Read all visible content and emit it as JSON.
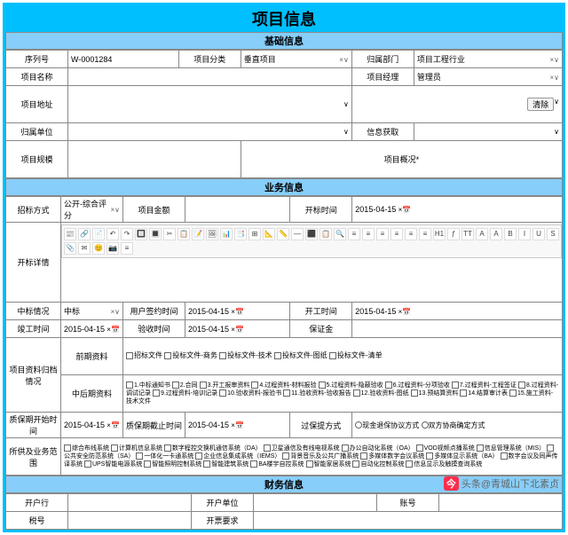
{
  "title": "项目信息",
  "sections": {
    "basic": "基础信息",
    "business": "业务信息",
    "finance": "财务信息"
  },
  "labels": {
    "serial_no": "序列号",
    "project_category": "项目分类",
    "department": "归属部门",
    "project_name": "项目名称",
    "project_manager": "项目经理",
    "project_address": "项目地址",
    "org_unit": "归属单位",
    "info_source": "信息获取",
    "project_scale": "项目规模",
    "project_overview": "项目概况*",
    "bid_method": "招标方式",
    "project_amount": "项目金额",
    "open_time": "开标时间",
    "bid_detail": "开标详情",
    "award_status": "中标情况",
    "user_sign_time": "用户签约时间",
    "start_time": "开工时间",
    "complete_time": "竣工时间",
    "accept_time": "验收时间",
    "deposit": "保证金",
    "material_storage": "项目资料归档情况",
    "early_material": "前期资料",
    "later_material": "中后期资料",
    "warranty_start": "质保期开始时间",
    "warranty_end": "质保期截止时间",
    "deposit_return": "过保提方式",
    "inv_scope": "所供及业务范围",
    "bank": "开户行",
    "account_unit": "开户单位",
    "account_no": "账号",
    "tax_no": "税号",
    "inv_require": "开票要求"
  },
  "values": {
    "serial_no": "W-0001284",
    "project_category": "垂直项目",
    "department": "项目工程行业",
    "project_manager": "管理员",
    "bid_method": "公开-综合评分",
    "open_time": "2015-04-15",
    "award_status": "中标",
    "user_sign_time": "2015-04-15",
    "start_time_val": "2015-04-15",
    "complete_time": "2015-04-15",
    "accept_time": "2015-04-15",
    "warranty_start": "2015-04-15",
    "warranty_end": "2015-04-15",
    "clear_btn": "清除"
  },
  "early_checkboxes": [
    "招标文件",
    "投标文件-商务",
    "投标文件-技术",
    "投标文件-图纸",
    "投标文件-清单"
  ],
  "later_checkboxes": "1.中标通知书  2.合同  3.开工报审资料  4.过程资料-材料报验  5.过程资料-隐蔽验收  6.过程资料-分项验收  7.过程资料-工程签证  8.过程资料-调试记录  9.过程资料-培训记录  10.验收资料-报验书  11.验收资料-验收报告  12.验收资料-图纸  13.预结算资料  14.结算审计表  15.施工资料-技术文件",
  "deposit_return_options": [
    "现金退保协议方式",
    "双方协商确定方式"
  ],
  "scope_checkboxes": "综合布线系统  计算机信息系统  数字程控交换机通信系统（DA）  卫星通信及有线电视系统  办公自动化系统（OA）  VOD视频点播系统  信息管理系统（MIS）  公共安全防范系统（SA）  一体化一卡通系统  企业信息集成系统（IEMS）  背景音乐及公共广播系统  多媒体数字会议系统  多媒体显示系统（BA）  数字会议及同声传译系统  UPS智能电源系统  智能照明控制系统  智能建筑系统  BA楼宇自控系统  智能家居系统  自动化控制系统  信息显示及触摸查询系统",
  "toolbar": {
    "row1": [
      "📰",
      "🔗",
      "📄",
      "↶",
      "↷",
      "🔲",
      "🔳",
      "✂",
      "📋",
      "📝",
      "🖼",
      "📊",
      "📑",
      "⊞",
      "📐",
      "📏",
      "—",
      "⬛",
      "📋",
      "🔍",
      "≡",
      "≡",
      "≡",
      "≡",
      "≡",
      "≡",
      "H1",
      "ƒ",
      "TT",
      "A",
      "A",
      "B",
      "I",
      "U",
      "S"
    ],
    "row2": [
      "📎",
      "✉",
      "😊",
      "📷",
      "≡"
    ]
  },
  "watermark": "头条@青城山下北素贞"
}
